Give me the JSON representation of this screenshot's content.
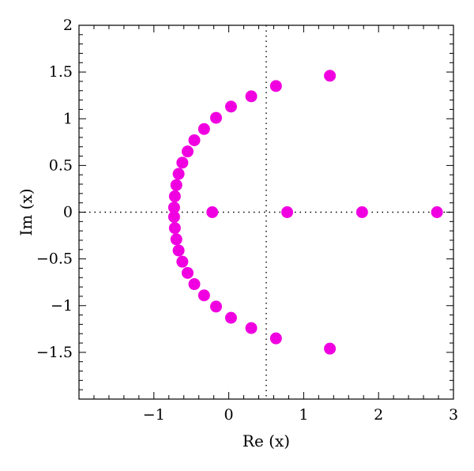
{
  "chart_data": {
    "type": "scatter",
    "title": "",
    "xlabel": "Re (x)",
    "ylabel": "Im (x)",
    "xlim": [
      -2,
      3
    ],
    "ylim": [
      -2,
      2
    ],
    "grid": false,
    "reference_lines": {
      "x": 0.5,
      "y": 0,
      "style": "dotted"
    },
    "xticks": [
      -1,
      0,
      1,
      2,
      3
    ],
    "xtick_labels": [
      "−1",
      "0",
      "1",
      "2",
      "3"
    ],
    "yticks": [
      2,
      1.5,
      1,
      0.5,
      0,
      -0.5,
      -1,
      -1.5
    ],
    "ytick_labels": [
      "2",
      "1.5",
      "1",
      "0.5",
      "0",
      "−0.5",
      "−1",
      "−1.5"
    ],
    "marker_color": "#f000e0",
    "series": [
      {
        "points": [
          [
            -0.73,
            0.05
          ],
          [
            -0.73,
            -0.05
          ],
          [
            -0.72,
            0.17
          ],
          [
            -0.72,
            -0.17
          ],
          [
            -0.7,
            0.29
          ],
          [
            -0.7,
            -0.29
          ],
          [
            -0.67,
            0.41
          ],
          [
            -0.67,
            -0.41
          ],
          [
            -0.62,
            0.53
          ],
          [
            -0.62,
            -0.53
          ],
          [
            -0.55,
            0.65
          ],
          [
            -0.55,
            -0.65
          ],
          [
            -0.46,
            0.77
          ],
          [
            -0.46,
            -0.77
          ],
          [
            -0.33,
            0.89
          ],
          [
            -0.33,
            -0.89
          ],
          [
            -0.17,
            1.01
          ],
          [
            -0.17,
            -1.01
          ],
          [
            0.03,
            1.13
          ],
          [
            0.03,
            -1.13
          ],
          [
            0.3,
            1.24
          ],
          [
            0.3,
            -1.24
          ],
          [
            0.63,
            1.35
          ],
          [
            0.63,
            -1.35
          ],
          [
            1.35,
            1.46
          ],
          [
            1.35,
            -1.46
          ],
          [
            -0.22,
            0
          ],
          [
            0.78,
            0
          ],
          [
            1.78,
            0
          ],
          [
            2.78,
            0
          ]
        ]
      }
    ]
  }
}
